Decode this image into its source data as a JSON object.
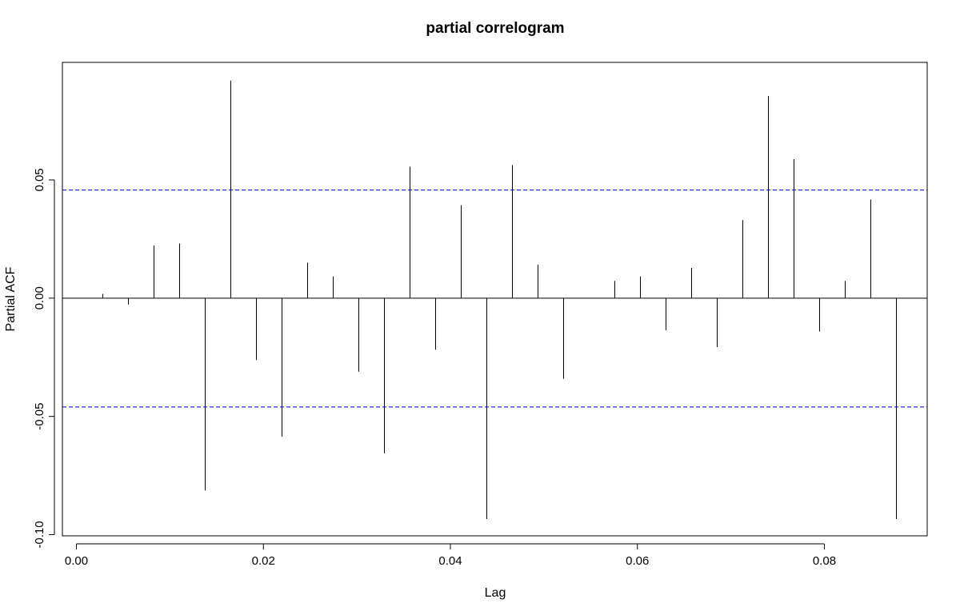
{
  "chart_data": {
    "type": "bar",
    "title": "partial correlogram",
    "xlabel": "Lag",
    "ylabel": "Partial ACF",
    "xlim": [
      -0.0015,
      0.091
    ],
    "ylim": [
      -0.1005,
      0.0997
    ],
    "x_ticks": [
      0.0,
      0.02,
      0.04,
      0.06,
      0.08
    ],
    "x_tick_labels": [
      "0.00",
      "0.02",
      "0.04",
      "0.06",
      "0.08"
    ],
    "y_ticks": [
      -0.1,
      -0.05,
      0.0,
      0.05
    ],
    "y_tick_labels": [
      "-0.10",
      "-0.05",
      "0.00",
      "0.05"
    ],
    "lags": [
      0.00274,
      0.00548,
      0.00822,
      0.01096,
      0.0137,
      0.01644,
      0.01918,
      0.02192,
      0.02466,
      0.0274,
      0.03014,
      0.03288,
      0.03562,
      0.03836,
      0.0411,
      0.04384,
      0.04658,
      0.04932,
      0.05206,
      0.0548,
      0.05754,
      0.06028,
      0.06302,
      0.06576,
      0.0685,
      0.07124,
      0.07398,
      0.07672,
      0.07946,
      0.0822,
      0.08494,
      0.08768
    ],
    "values": [
      0.0018,
      -0.0027,
      0.0223,
      0.0231,
      -0.0813,
      0.092,
      -0.0262,
      -0.0586,
      0.015,
      0.0092,
      -0.0311,
      -0.0656,
      0.0556,
      -0.0218,
      0.0393,
      -0.0934,
      0.0563,
      0.0142,
      -0.0341,
      0.0,
      0.0073,
      0.0092,
      -0.0136,
      0.0128,
      -0.0207,
      0.033,
      0.0855,
      0.0588,
      -0.0141,
      0.0073,
      0.0417,
      -0.0934
    ],
    "conf_bounds": [
      0.0457,
      -0.046
    ],
    "conf_color": "#0000cc",
    "grid": false,
    "legend": "none"
  }
}
